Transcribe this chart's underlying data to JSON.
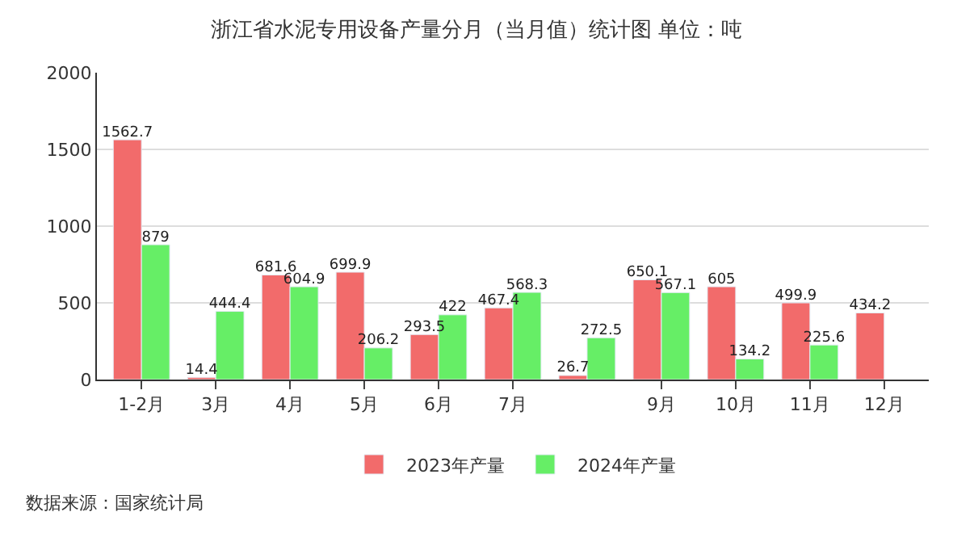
{
  "chart_data": {
    "type": "bar",
    "title": "浙江省水泥专用设备产量分月（当月值）统计图 单位：吨",
    "categories": [
      "1-2月",
      "3月",
      "4月",
      "5月",
      "6月",
      "7月",
      null,
      "9月",
      "10月",
      "11月",
      "12月"
    ],
    "series": [
      {
        "name": "2023年产量",
        "color": "#f26b6b",
        "values": [
          1562.7,
          14.4,
          681.6,
          699.9,
          293.5,
          467.4,
          26.7,
          650.1,
          605,
          499.9,
          434.2
        ]
      },
      {
        "name": "2024年产量",
        "color": "#66ee66",
        "values": [
          879,
          444.4,
          604.9,
          206.2,
          422,
          568.3,
          272.5,
          567.1,
          134.2,
          225.6,
          null
        ]
      }
    ],
    "ylim": [
      0,
      2000
    ],
    "yticks": [
      0,
      500,
      1000,
      1500,
      2000
    ],
    "grid": "y",
    "legend": "bottom",
    "data_labels": true,
    "annotations": [
      "数据来源：国家统计局"
    ]
  }
}
